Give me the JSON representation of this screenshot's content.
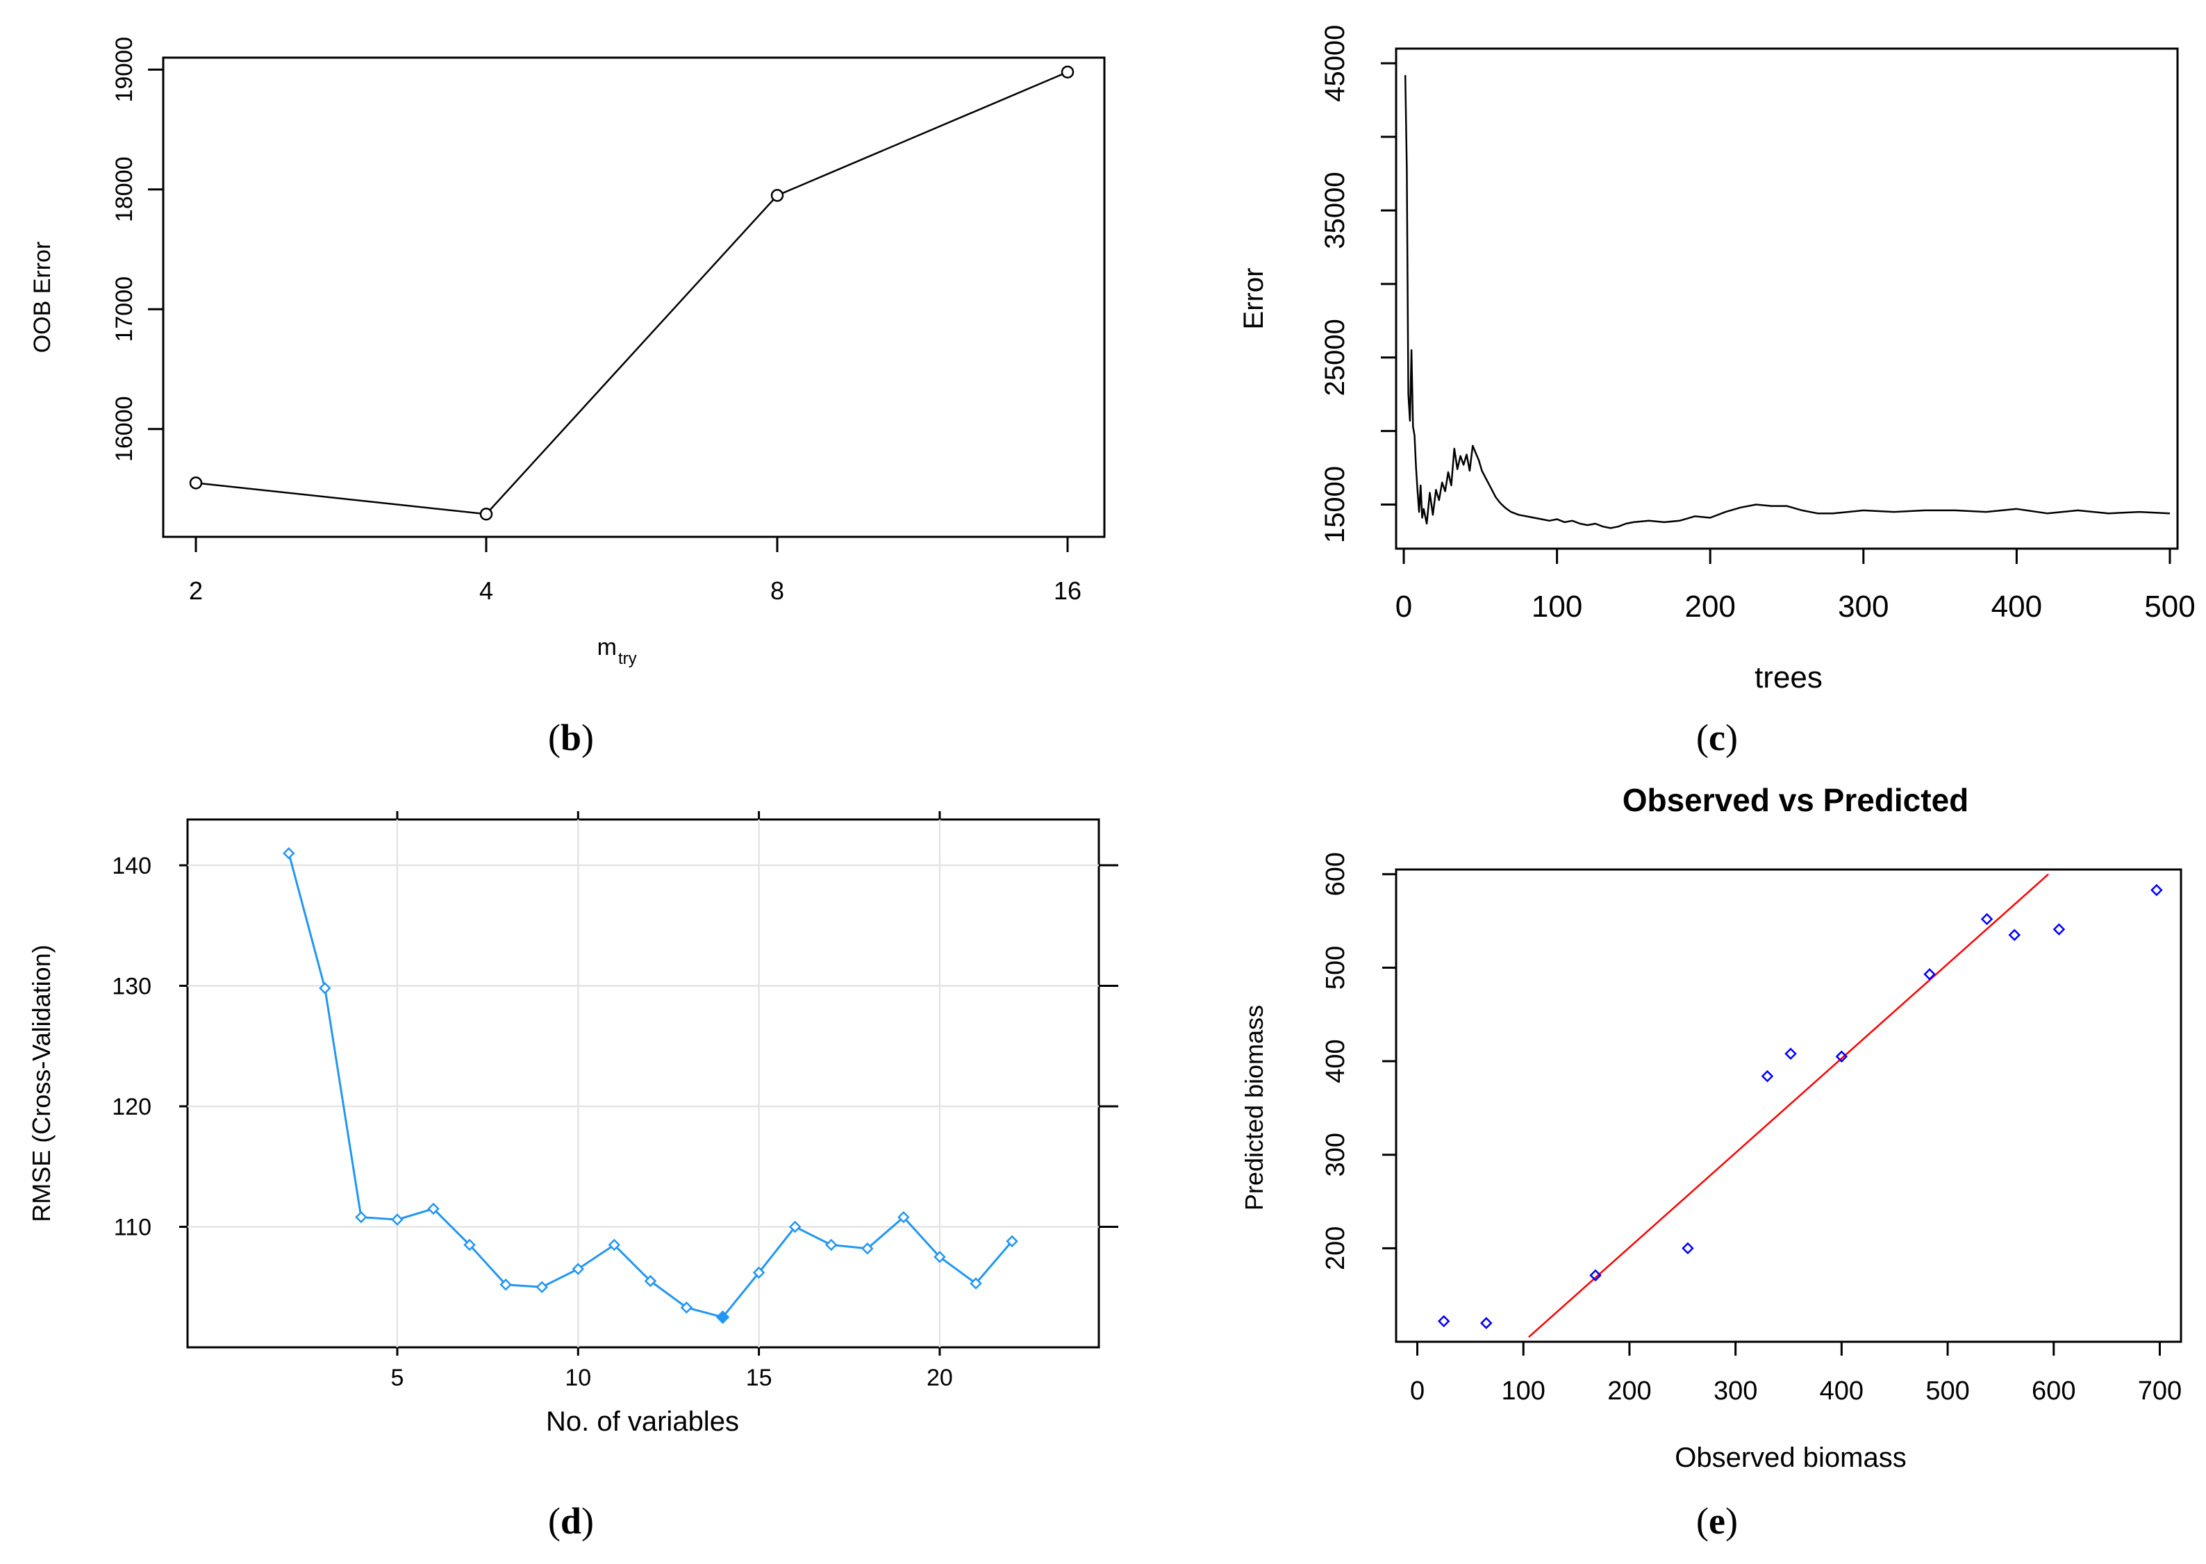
{
  "panels": {
    "b": {
      "caption_letter": "b"
    },
    "c": {
      "caption_letter": "c"
    },
    "d": {
      "caption_letter": "d"
    },
    "e": {
      "caption_letter": "e"
    }
  },
  "chart_data": [
    {
      "id": "b",
      "type": "line",
      "title": "",
      "xlabel_main": "m",
      "xlabel_sub": "try",
      "ylabel": "OOB Error",
      "categories": [
        "2",
        "4",
        "8",
        "16"
      ],
      "values": [
        15550,
        15290,
        17950,
        18980
      ],
      "ylim": [
        15100,
        19100
      ],
      "yticks": [
        16000,
        17000,
        18000,
        19000
      ],
      "marker": "open-circle",
      "color": "#000000"
    },
    {
      "id": "c",
      "type": "line",
      "title": "",
      "xlabel": "trees",
      "ylabel": "Error",
      "xlim": [
        -5,
        505
      ],
      "ylim": [
        12000,
        46000
      ],
      "xticks": [
        0,
        100,
        200,
        300,
        400,
        500
      ],
      "yticks": [
        15000,
        25000,
        35000,
        45000
      ],
      "x": [
        1,
        2,
        3,
        4,
        5,
        6,
        7,
        8,
        9,
        10,
        11,
        12,
        13,
        15,
        17,
        19,
        21,
        23,
        25,
        27,
        29,
        31,
        33,
        35,
        37,
        39,
        41,
        43,
        45,
        47,
        49,
        51,
        54,
        57,
        60,
        63,
        66,
        70,
        75,
        80,
        85,
        90,
        95,
        100,
        105,
        110,
        115,
        120,
        125,
        130,
        135,
        140,
        145,
        150,
        160,
        170,
        180,
        190,
        200,
        210,
        220,
        230,
        240,
        250,
        260,
        270,
        280,
        290,
        300,
        320,
        340,
        360,
        380,
        400,
        420,
        440,
        460,
        480,
        500
      ],
      "values": [
        44200,
        37800,
        22500,
        20700,
        25500,
        20300,
        19700,
        17500,
        15900,
        14500,
        16300,
        14100,
        14700,
        13700,
        15800,
        14300,
        16000,
        15300,
        16500,
        15900,
        17200,
        16300,
        18800,
        17400,
        18300,
        17700,
        18400,
        17300,
        19000,
        18500,
        18000,
        17300,
        16700,
        16100,
        15500,
        15100,
        14800,
        14500,
        14300,
        14200,
        14100,
        14000,
        13900,
        14000,
        13800,
        13900,
        13700,
        13600,
        13700,
        13500,
        13400,
        13500,
        13700,
        13800,
        13900,
        13800,
        13900,
        14200,
        14100,
        14500,
        14800,
        15000,
        14900,
        14900,
        14600,
        14400,
        14400,
        14500,
        14600,
        14500,
        14600,
        14600,
        14500,
        14700,
        14400,
        14600,
        14400,
        14500,
        14400
      ],
      "color": "#000000"
    },
    {
      "id": "d",
      "type": "line",
      "title": "",
      "xlabel": "No. of variables",
      "ylabel": "RMSE (Cross-Validation)",
      "x": [
        2,
        3,
        4,
        5,
        6,
        7,
        8,
        9,
        10,
        11,
        12,
        13,
        14,
        15,
        16,
        17,
        18,
        19,
        20,
        21,
        22
      ],
      "values": [
        141.0,
        129.8,
        110.8,
        110.6,
        111.5,
        108.5,
        105.2,
        105.0,
        106.5,
        108.5,
        105.5,
        103.3,
        102.5,
        106.2,
        110.0,
        108.5,
        108.2,
        110.8,
        107.5,
        105.3,
        108.8
      ],
      "selected_index": 12,
      "xlim": [
        -0.8,
        24.4
      ],
      "ylim": [
        100.0,
        143.8
      ],
      "xticks": [
        5,
        10,
        15,
        20
      ],
      "yticks": [
        110,
        120,
        130,
        140
      ],
      "grid": true,
      "marker": "open-diamond",
      "color": "#2196f3"
    },
    {
      "id": "e",
      "type": "scatter",
      "title": "Observed vs Predicted",
      "xlabel": "Observed biomass",
      "ylabel": "Predicted biomass",
      "points": [
        {
          "x": 25,
          "y": 122
        },
        {
          "x": 65,
          "y": 120
        },
        {
          "x": 168,
          "y": 171
        },
        {
          "x": 255,
          "y": 200
        },
        {
          "x": 330,
          "y": 384
        },
        {
          "x": 352,
          "y": 408
        },
        {
          "x": 400,
          "y": 405
        },
        {
          "x": 483,
          "y": 493
        },
        {
          "x": 537,
          "y": 552
        },
        {
          "x": 563,
          "y": 535
        },
        {
          "x": 605,
          "y": 541
        },
        {
          "x": 697,
          "y": 583
        }
      ],
      "fit_line": {
        "x": [
          105,
          595
        ],
        "y": [
          105,
          600
        ]
      },
      "xlim": [
        -20,
        720
      ],
      "ylim": [
        100,
        605
      ],
      "xticks": [
        0,
        100,
        200,
        300,
        400,
        500,
        600,
        700
      ],
      "yticks": [
        200,
        300,
        400,
        500,
        600
      ],
      "marker": "open-diamond",
      "point_color": "#0000ff",
      "line_color": "#ff0000"
    }
  ]
}
